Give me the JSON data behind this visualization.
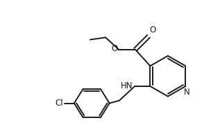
{
  "background": "#ffffff",
  "line_color": "#1a1a1a",
  "line_width": 1.4,
  "font_size": 8.5,
  "figsize": [
    3.17,
    1.84
  ],
  "dpi": 100,
  "xlim": [
    -0.5,
    3.3
  ],
  "ylim": [
    -1.1,
    1.2
  ]
}
